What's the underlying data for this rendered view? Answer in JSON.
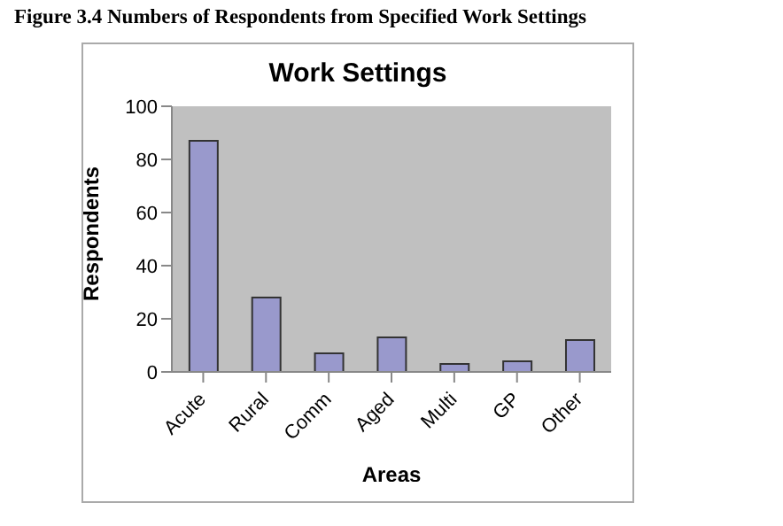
{
  "chart_data": {
    "type": "bar",
    "title": "Work Settings",
    "xlabel": "Areas",
    "ylabel": "Respondents",
    "annotations": [
      "Figure 3.4 Numbers of Respondents from Specified Work Settings"
    ],
    "categories": [
      "Acute",
      "Rural",
      "Comm",
      "Aged",
      "Multi",
      "GP",
      "Other"
    ],
    "values": [
      87,
      28,
      7,
      13,
      3,
      4,
      12
    ],
    "color": "#9999cc",
    "ylim": [
      0,
      100
    ],
    "yticks": [
      0,
      20,
      40,
      60,
      80,
      100
    ],
    "grid": false,
    "legend": false
  }
}
